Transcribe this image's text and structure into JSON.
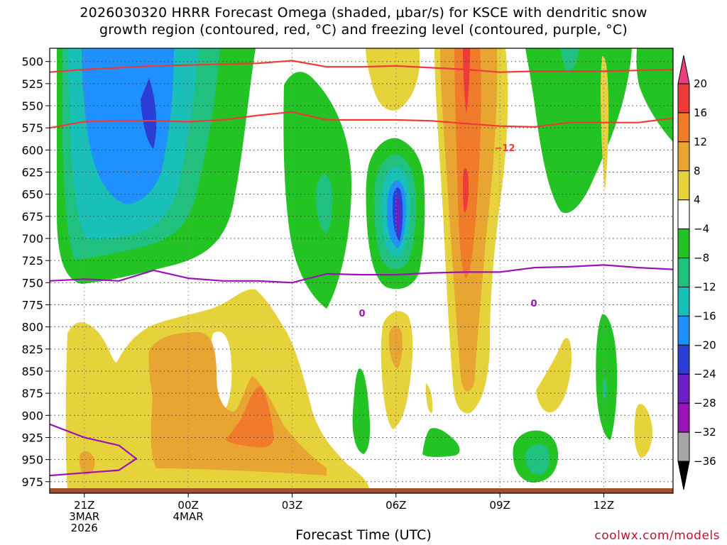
{
  "title_line1": "2026030320 HRRR Forecast Omega (shaded, μbar/s) for KSCE with dendritic snow",
  "title_line2": "growth region (contoured, red, °C) and freezing level (contoured, purple, °C)",
  "xlabel": "Forecast Time (UTC)",
  "credit": "coolwx.com/models",
  "chart_data": {
    "type": "heatmap",
    "x_hours_from_start": [
      0,
      3,
      6,
      9,
      12,
      15,
      18
    ],
    "x_tick_labels": [
      [
        "21Z",
        "3MAR",
        "2026"
      ],
      [
        "00Z",
        "4MAR"
      ],
      [
        "03Z"
      ],
      [
        "06Z"
      ],
      [
        "09Z"
      ],
      [
        "12Z"
      ]
    ],
    "y_pressure_levels_mb": [
      500,
      525,
      550,
      575,
      600,
      625,
      650,
      675,
      700,
      725,
      750,
      775,
      800,
      825,
      850,
      875,
      900,
      925,
      950,
      975
    ],
    "y_range_mb": [
      485,
      988
    ],
    "x_range_hours": [
      -1,
      17
    ],
    "colorbar_labels": [
      "20",
      "16",
      "12",
      "8",
      "4",
      "−4",
      "−8",
      "−12",
      "−16",
      "−20",
      "−24",
      "−28",
      "−32",
      "−36"
    ],
    "colorbar_colors": [
      "#ec407a",
      "#ef3a3a",
      "#ef7b2b",
      "#e8a532",
      "#e6d23a",
      "#ffffff",
      "#22c322",
      "#20c07e",
      "#19c0b8",
      "#1e90ff",
      "#2b3fd6",
      "#6c1fc5",
      "#9b12b8",
      "#a6a6a6",
      "#000000"
    ],
    "contour_labels": {
      "snow_growth_minus12": "−12",
      "freezing_level_0": "0"
    },
    "snow_growth_lines": [
      {
        "name": "upper",
        "points": [
          [
            -1,
            512
          ],
          [
            0,
            509
          ],
          [
            1,
            507
          ],
          [
            2,
            505
          ],
          [
            3,
            504
          ],
          [
            4,
            503
          ],
          [
            5,
            502
          ],
          [
            6,
            499
          ],
          [
            7,
            506
          ],
          [
            8,
            506
          ],
          [
            9,
            505
          ],
          [
            10,
            507
          ],
          [
            11,
            509
          ],
          [
            12,
            512
          ],
          [
            13,
            511
          ],
          [
            14,
            511
          ],
          [
            15,
            511
          ],
          [
            16,
            510
          ],
          [
            17,
            509
          ]
        ]
      },
      {
        "name": "lower",
        "points": [
          [
            -1,
            575
          ],
          [
            0,
            568
          ],
          [
            1,
            567
          ],
          [
            2,
            567
          ],
          [
            3,
            568
          ],
          [
            4,
            566
          ],
          [
            5,
            561
          ],
          [
            6,
            557
          ],
          [
            7,
            566
          ],
          [
            8,
            566
          ],
          [
            9,
            566
          ],
          [
            10,
            567
          ],
          [
            11,
            570
          ],
          [
            12,
            573
          ],
          [
            13,
            574
          ],
          [
            14,
            569
          ],
          [
            15,
            569
          ],
          [
            16,
            569
          ],
          [
            17,
            564
          ]
        ]
      }
    ],
    "freezing_level_lines": [
      {
        "name": "main",
        "points": [
          [
            -1,
            748
          ],
          [
            0,
            746
          ],
          [
            1,
            748
          ],
          [
            2,
            736
          ],
          [
            3,
            745
          ],
          [
            4,
            748
          ],
          [
            5,
            748
          ],
          [
            6,
            750
          ],
          [
            7,
            740
          ],
          [
            8,
            741
          ],
          [
            9,
            741
          ],
          [
            10,
            739
          ],
          [
            11,
            738
          ],
          [
            12,
            738
          ],
          [
            13,
            733
          ],
          [
            14,
            732
          ],
          [
            15,
            730
          ],
          [
            16,
            733
          ],
          [
            17,
            735
          ]
        ]
      },
      {
        "name": "low",
        "points": [
          [
            -1,
            910
          ],
          [
            0,
            925
          ],
          [
            1,
            934
          ],
          [
            1.5,
            949
          ],
          [
            1,
            962
          ],
          [
            0,
            965
          ],
          [
            -1,
            968
          ]
        ]
      }
    ]
  }
}
